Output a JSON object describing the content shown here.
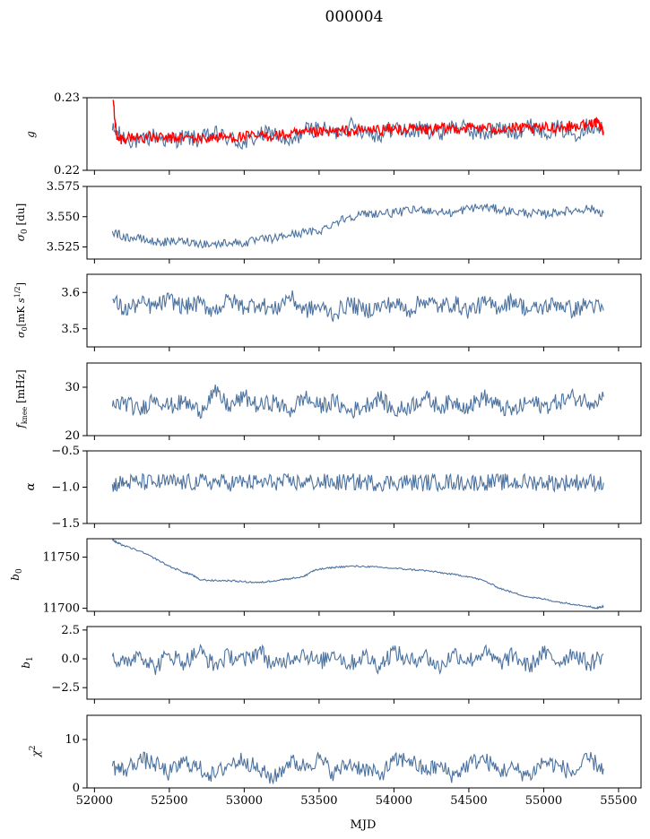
{
  "colors": {
    "series": "#4c72a0",
    "overlay": "#ff0000",
    "axis": "#000000"
  },
  "chart_data": {
    "type": "line",
    "title": "000004",
    "xlabel": "MJD",
    "xlim": [
      51950,
      55650
    ],
    "x_ticks": [
      52000,
      52500,
      53000,
      53500,
      54000,
      54500,
      55000,
      55500
    ],
    "x_tick_labels": [
      "52000",
      "52500",
      "53000",
      "53500",
      "54000",
      "54500",
      "55000",
      "55500"
    ],
    "grid": false,
    "legend": "none",
    "panels": [
      {
        "id": "g",
        "ylabel": "g",
        "ylim": [
          0.22,
          0.23
        ],
        "y_ticks": [
          0.22,
          0.23
        ],
        "y_tick_labels": [
          "0.22",
          "0.23"
        ],
        "series": [
          {
            "color": "#4c72a0",
            "x": [
              52120,
              52200,
              52300,
              52400,
              52500,
              52600,
              52700,
              52800,
              52900,
              53000,
              53100,
              53200,
              53300,
              53400,
              53500,
              53600,
              53700,
              53800,
              53900,
              54000,
              54100,
              54200,
              54300,
              54400,
              54500,
              54600,
              54700,
              54800,
              54900,
              55000,
              55100,
              55200,
              55300,
              55400
            ],
            "y": [
              0.2255,
              0.2245,
              0.2238,
              0.2248,
              0.224,
              0.2246,
              0.2242,
              0.225,
              0.2244,
              0.2236,
              0.2248,
              0.2252,
              0.2235,
              0.2255,
              0.2258,
              0.225,
              0.2262,
              0.2255,
              0.2248,
              0.226,
              0.2252,
              0.2258,
              0.225,
              0.2262,
              0.2255,
              0.225,
              0.2258,
              0.2252,
              0.2262,
              0.2254,
              0.2258,
              0.225,
              0.2262,
              0.2255
            ]
          },
          {
            "color": "#ff0000",
            "x": [
              52125,
              52150,
              52200,
              52300,
              52400,
              52500,
              52600,
              52700,
              52800,
              52900,
              53000,
              53100,
              53200,
              53300,
              53400,
              53500,
              53600,
              53700,
              53800,
              53900,
              54000,
              54100,
              54200,
              54300,
              54400,
              54500,
              54600,
              54700,
              54800,
              54900,
              55000,
              55100,
              55200,
              55300,
              55340,
              55400
            ],
            "y": [
              0.2297,
              0.2242,
              0.2245,
              0.2246,
              0.2245,
              0.2244,
              0.2245,
              0.2244,
              0.2245,
              0.2246,
              0.2246,
              0.2247,
              0.2248,
              0.2249,
              0.2251,
              0.2252,
              0.2253,
              0.2254,
              0.2255,
              0.2256,
              0.2256,
              0.2257,
              0.2256,
              0.2257,
              0.2258,
              0.2259,
              0.2258,
              0.2257,
              0.2258,
              0.2257,
              0.2258,
              0.2259,
              0.2261,
              0.2263,
              0.2268,
              0.2253
            ]
          }
        ]
      },
      {
        "id": "sigma0-du",
        "ylabel": "σ0 [du]",
        "ylim": [
          3.515,
          3.575
        ],
        "y_ticks": [
          3.525,
          3.55,
          3.575
        ],
        "y_tick_labels": [
          "3.525",
          "3.550",
          "3.575"
        ],
        "series": [
          {
            "color": "#4c72a0",
            "x": [
              52120,
              52200,
              52300,
              52400,
              52500,
              52600,
              52700,
              52800,
              52900,
              53000,
              53100,
              53200,
              53300,
              53400,
              53500,
              53600,
              53700,
              53800,
              53900,
              54000,
              54100,
              54200,
              54300,
              54400,
              54500,
              54600,
              54700,
              54800,
              54900,
              55000,
              55100,
              55200,
              55300,
              55400
            ],
            "y": [
              3.538,
              3.533,
              3.532,
              3.529,
              3.529,
              3.53,
              3.528,
              3.527,
              3.529,
              3.528,
              3.531,
              3.532,
              3.535,
              3.537,
              3.538,
              3.545,
              3.55,
              3.552,
              3.553,
              3.553,
              3.555,
              3.556,
              3.554,
              3.553,
              3.557,
              3.558,
              3.556,
              3.554,
              3.553,
              3.552,
              3.554,
              3.555,
              3.557,
              3.553
            ]
          }
        ]
      },
      {
        "id": "sigma0-mk",
        "ylabel": "σ0 [mK s^1/2]",
        "ylim": [
          3.45,
          3.65
        ],
        "y_ticks": [
          3.5,
          3.6
        ],
        "y_tick_labels": [
          "3.5",
          "3.6"
        ],
        "series": [
          {
            "color": "#4c72a0",
            "x": [
              52120,
              52200,
              52300,
              52400,
              52500,
              52600,
              52700,
              52800,
              52900,
              53000,
              53100,
              53200,
              53300,
              53400,
              53500,
              53600,
              53700,
              53800,
              53900,
              54000,
              54100,
              54200,
              54300,
              54400,
              54500,
              54600,
              54700,
              54800,
              54900,
              55000,
              55100,
              55200,
              55300,
              55400
            ],
            "y": [
              3.58,
              3.55,
              3.57,
              3.56,
              3.58,
              3.56,
              3.57,
              3.55,
              3.58,
              3.56,
              3.57,
              3.55,
              3.59,
              3.55,
              3.56,
              3.54,
              3.57,
              3.55,
              3.56,
              3.57,
              3.55,
              3.58,
              3.56,
              3.57,
              3.55,
              3.57,
              3.56,
              3.58,
              3.55,
              3.56,
              3.57,
              3.55,
              3.57,
              3.55
            ]
          }
        ]
      },
      {
        "id": "fknee",
        "ylabel": "f_knee [mHz]",
        "ylim": [
          20,
          35
        ],
        "y_ticks": [
          20,
          30
        ],
        "y_tick_labels": [
          "20",
          "30"
        ],
        "series": [
          {
            "color": "#4c72a0",
            "x": [
              52120,
              52200,
              52300,
              52400,
              52500,
              52600,
              52700,
              52800,
              52900,
              53000,
              53100,
              53200,
              53300,
              53400,
              53500,
              53600,
              53700,
              53800,
              53900,
              54000,
              54100,
              54200,
              54300,
              54400,
              54500,
              54600,
              54700,
              54800,
              54900,
              55000,
              55100,
              55200,
              55300,
              55400
            ],
            "y": [
              26,
              27,
              25,
              28,
              26,
              27,
              25,
              29,
              26,
              28,
              26,
              27,
              25,
              28,
              26,
              27,
              25,
              26,
              28,
              25,
              26,
              28,
              26,
              27,
              26,
              28,
              26,
              25,
              27,
              26,
              27,
              28,
              27,
              28
            ]
          }
        ]
      },
      {
        "id": "alpha",
        "ylabel": "α",
        "ylim": [
          -1.5,
          -0.5
        ],
        "y_ticks": [
          -1.5,
          -1.0,
          -0.5
        ],
        "y_tick_labels": [
          "−1.5",
          "−1.0",
          "−0.5"
        ],
        "series": [
          {
            "color": "#4c72a0",
            "x": [
              52120,
              52200,
              52300,
              52400,
              52500,
              52600,
              52700,
              52800,
              52900,
              53000,
              53100,
              53200,
              53300,
              53400,
              53500,
              53600,
              53700,
              53800,
              53900,
              54000,
              54100,
              54200,
              54300,
              54400,
              54500,
              54600,
              54700,
              54800,
              54900,
              55000,
              55100,
              55200,
              55300,
              55400
            ],
            "y": [
              -0.96,
              -0.94,
              -0.93,
              -0.94,
              -0.93,
              -0.94,
              -0.93,
              -0.93,
              -0.94,
              -0.93,
              -0.94,
              -0.93,
              -0.94,
              -0.93,
              -0.93,
              -0.94,
              -0.93,
              -0.93,
              -0.94,
              -0.93,
              -0.93,
              -0.94,
              -0.93,
              -0.93,
              -0.94,
              -0.93,
              -0.93,
              -0.94,
              -0.93,
              -0.93,
              -0.94,
              -0.93,
              -0.93,
              -0.94
            ]
          }
        ]
      },
      {
        "id": "b0",
        "ylabel": "b0",
        "ylim": [
          11697,
          11768
        ],
        "y_ticks": [
          11700,
          11750
        ],
        "y_tick_labels": [
          "11700",
          "11750"
        ],
        "series": [
          {
            "color": "#4c72a0",
            "x": [
              52120,
              52150,
              52200,
              52300,
              52400,
              52500,
              52600,
              52650,
              52700,
              52800,
              52900,
              53000,
              53100,
              53200,
              53300,
              53400,
              53450,
              53500,
              53600,
              53700,
              53800,
              53900,
              54000,
              54100,
              54200,
              54300,
              54400,
              54500,
              54600,
              54700,
              54800,
              54900,
              55000,
              55100,
              55200,
              55300,
              55350,
              55400
            ],
            "y": [
              11767,
              11764,
              11761,
              11756,
              11749,
              11741,
              11735,
              11733,
              11728,
              11727,
              11727,
              11726,
              11725,
              11727,
              11729,
              11731,
              11736,
              11738,
              11740,
              11741,
              11741,
              11740,
              11739,
              11738,
              11737,
              11735,
              11733,
              11731,
              11727,
              11720,
              11715,
              11711,
              11709,
              11706,
              11704,
              11702,
              11700,
              11702
            ]
          }
        ]
      },
      {
        "id": "b1",
        "ylabel": "b1",
        "ylim": [
          -3.5,
          2.8
        ],
        "y_ticks": [
          -2.5,
          0.0,
          2.5
        ],
        "y_tick_labels": [
          "−2.5",
          "0.0",
          "2.5"
        ],
        "series": [
          {
            "color": "#4c72a0",
            "x": [
              52120,
              52200,
              52300,
              52400,
              52500,
              52600,
              52700,
              52800,
              52900,
              53000,
              53100,
              53200,
              53300,
              53400,
              53500,
              53600,
              53700,
              53800,
              53900,
              54000,
              54100,
              54200,
              54300,
              54400,
              54500,
              54600,
              54700,
              54800,
              54900,
              55000,
              55100,
              55200,
              55300,
              55400
            ],
            "y": [
              0.2,
              -0.5,
              0.6,
              -0.8,
              0.4,
              -0.3,
              0.7,
              -0.6,
              0.3,
              -0.2,
              0.8,
              -0.7,
              0.1,
              0.5,
              -0.4,
              0.6,
              -0.5,
              0.3,
              -0.6,
              0.7,
              -0.3,
              0.4,
              -0.8,
              0.5,
              -0.2,
              0.6,
              -0.4,
              0.3,
              -0.7,
              0.5,
              -0.3,
              0.6,
              -0.5,
              0.4
            ]
          }
        ]
      },
      {
        "id": "chi2",
        "ylabel": "χ2",
        "ylim": [
          0,
          15
        ],
        "y_ticks": [
          0,
          10
        ],
        "y_tick_labels": [
          "0",
          "10"
        ],
        "series": [
          {
            "color": "#4c72a0",
            "x": [
              52120,
              52200,
              52300,
              52400,
              52500,
              52600,
              52700,
              52800,
              52900,
              53000,
              53100,
              53200,
              53300,
              53400,
              53500,
              53600,
              53700,
              53800,
              53900,
              54000,
              54100,
              54200,
              54300,
              54400,
              54500,
              54600,
              54700,
              54800,
              54900,
              55000,
              55100,
              55200,
              55300,
              55400
            ],
            "y": [
              4.5,
              3.5,
              6.0,
              5.0,
              3.0,
              5.5,
              4.0,
              2.5,
              5.0,
              6.0,
              3.5,
              2.0,
              5.5,
              4.5,
              6.0,
              3.0,
              5.0,
              4.0,
              2.5,
              5.5,
              6.0,
              3.5,
              4.5,
              2.5,
              5.0,
              6.0,
              3.5,
              4.0,
              2.5,
              5.5,
              4.5,
              3.0,
              6.0,
              4.0
            ]
          }
        ]
      }
    ]
  }
}
